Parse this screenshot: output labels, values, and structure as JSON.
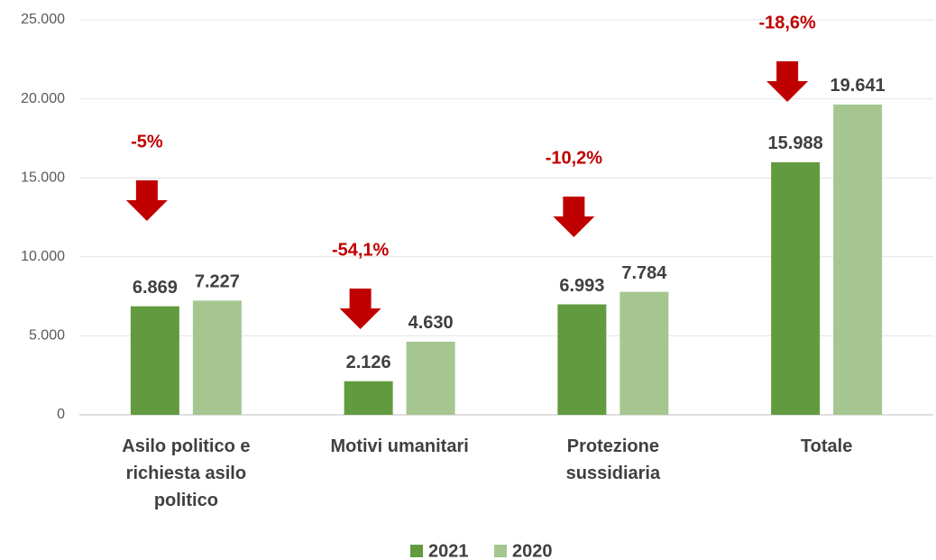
{
  "chart_data": {
    "type": "bar",
    "categories": [
      "Asilo politico e richiesta asilo politico",
      "Motivi umanitari",
      "Protezione sussidiaria",
      "Totale"
    ],
    "series": [
      {
        "name": "2021",
        "color": "#629b3f",
        "values": [
          6869,
          2126,
          6993,
          15988
        ],
        "value_labels": [
          "6.869",
          "2.126",
          "6.993",
          "15.988"
        ]
      },
      {
        "name": "2020",
        "color": "#a5c690",
        "values": [
          7227,
          4630,
          7784,
          19641
        ],
        "value_labels": [
          "7.227",
          "4.630",
          "7.784",
          "19.641"
        ]
      }
    ],
    "annotations": [
      "-5%",
      "-54,1%",
      "-10,2%",
      "-18,6%"
    ],
    "ylim": [
      0,
      25000
    ],
    "yticks": [
      0,
      {
        "value": 5000,
        "label": "5.000"
      },
      {
        "value": 10000,
        "label": "10.000"
      },
      {
        "value": 15000,
        "label": "15.000"
      },
      {
        "value": 20000,
        "label": "20.000"
      },
      {
        "value": 25000,
        "label": "25.000"
      }
    ],
    "grid": true,
    "legend": "bottom"
  }
}
